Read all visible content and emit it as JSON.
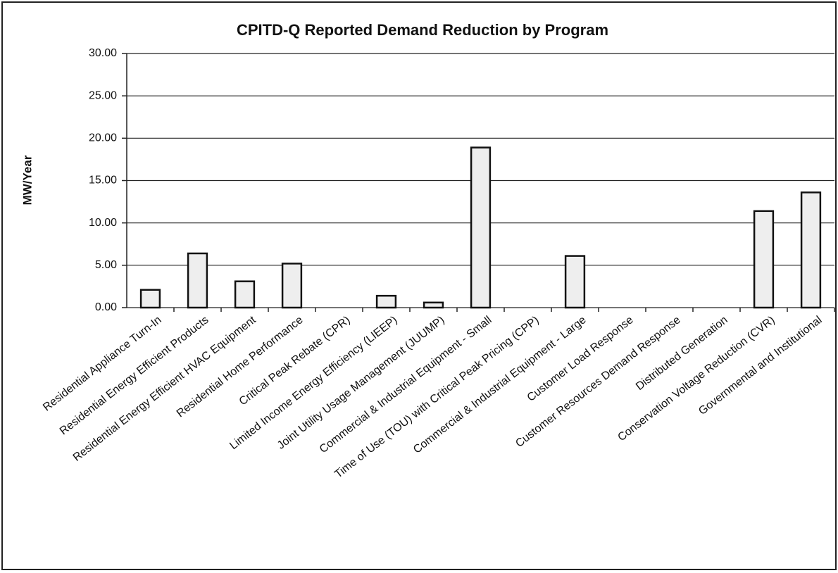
{
  "chart_data": {
    "type": "bar",
    "title": "CPITD-Q Reported Demand Reduction by Program",
    "y_label": "MW/Year",
    "categories": [
      "Residential Appliance Turn-In",
      "Residential Energy Efficient Products",
      "Residential Energy Efficient HVAC Equipment",
      "Residential Home Performance",
      "Critical Peak Rebate (CPR)",
      "Limited Income Energy Efficiency (LIEEP)",
      "Joint Utility Usage Management (JUUMP)",
      "Commercial & Industrial Equipment - Small",
      "Time of Use (TOU) with Critical Peak Pricing (CPP)",
      "Commercial & Industrial Equipment - Large",
      "Customer Load Response",
      "Customer Resources Demand Response",
      "Distributed Generation",
      "Conservation Voltage Reduction (CVR)",
      "Governmental and Institutional"
    ],
    "values": [
      2.1,
      6.4,
      3.1,
      5.2,
      0,
      1.4,
      0.6,
      18.9,
      0,
      6.1,
      0,
      0,
      0,
      11.4,
      13.6
    ],
    "color": "#eeeeee",
    "ylim": [
      0,
      30
    ],
    "yticks": [
      {
        "value": 0,
        "label": "0.00"
      },
      {
        "value": 5,
        "label": "5.00"
      },
      {
        "value": 10,
        "label": "10.00"
      },
      {
        "value": 15,
        "label": "15.00"
      },
      {
        "value": 20,
        "label": "20.00"
      },
      {
        "value": 25,
        "label": "25.00"
      },
      {
        "value": 30,
        "label": "30.00"
      }
    ],
    "grid": true
  }
}
